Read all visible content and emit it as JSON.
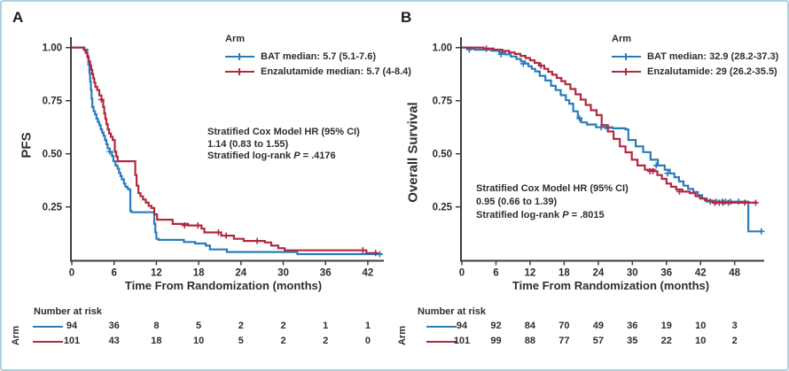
{
  "figure": {
    "border_color": "#abd3e1",
    "axis_color": "#3e3e3e",
    "text_color": "#2d2d2d"
  },
  "chart_data": [
    {
      "type": "km_step",
      "panel_label": "A",
      "y_axis_title": "PFS",
      "x_axis_title": "Time From Randomization (months)",
      "x_ticks": [
        0,
        6,
        12,
        18,
        24,
        30,
        36,
        42
      ],
      "y_ticks": [
        {
          "v": 0.25,
          "label": "0.25"
        },
        {
          "v": 0.5,
          "label": "0.50"
        },
        {
          "v": 0.75,
          "label": "0.75"
        },
        {
          "v": 1.0,
          "label": "1.00"
        }
      ],
      "xlim": [
        0,
        44
      ],
      "ylim": [
        0,
        1.0
      ],
      "grid": false,
      "legend_position": "top-right",
      "legend_title": "Arm",
      "annotation": {
        "line1": "Stratified Cox Model HR (95% CI)",
        "line2": "1.14 (0.83 to 1.55)",
        "line3_prefix": "Stratified log-rank",
        "line3_p": "P",
        "line3_value": "= .4176"
      },
      "risk_header": "Number at risk",
      "arm_label": "Arm",
      "series": [
        {
          "name": "BAT",
          "legend_label": "BAT median: 5.7 (5.1-7.6)",
          "color": "#2b7bb9",
          "points": [
            [
              0,
              1.0
            ],
            [
              1.6,
              1.0
            ],
            [
              1.8,
              0.99
            ],
            [
              2.1,
              0.99
            ],
            [
              2.2,
              0.96
            ],
            [
              2.35,
              0.92
            ],
            [
              2.5,
              0.88
            ],
            [
              2.6,
              0.84
            ],
            [
              2.7,
              0.8
            ],
            [
              2.8,
              0.76
            ],
            [
              2.9,
              0.72
            ],
            [
              3.1,
              0.7
            ],
            [
              3.3,
              0.685
            ],
            [
              3.5,
              0.665
            ],
            [
              3.7,
              0.65
            ],
            [
              3.9,
              0.635
            ],
            [
              4.1,
              0.615
            ],
            [
              4.3,
              0.6
            ],
            [
              4.5,
              0.585
            ],
            [
              4.7,
              0.565
            ],
            [
              4.9,
              0.545
            ],
            [
              5.1,
              0.525
            ],
            [
              5.4,
              0.51
            ],
            [
              5.7,
              0.49
            ],
            [
              5.9,
              0.465
            ],
            [
              6.2,
              0.445
            ],
            [
              6.5,
              0.43
            ],
            [
              6.7,
              0.41
            ],
            [
              6.9,
              0.395
            ],
            [
              7.1,
              0.38
            ],
            [
              7.4,
              0.36
            ],
            [
              7.6,
              0.345
            ],
            [
              7.9,
              0.335
            ],
            [
              8.2,
              0.33
            ],
            [
              8.3,
              0.23
            ],
            [
              8.5,
              0.225
            ],
            [
              11.5,
              0.225
            ],
            [
              11.7,
              0.17
            ],
            [
              11.85,
              0.13
            ],
            [
              12.0,
              0.1
            ],
            [
              12.3,
              0.095
            ],
            [
              15.6,
              0.095
            ],
            [
              15.9,
              0.085
            ],
            [
              17.5,
              0.078
            ],
            [
              19.0,
              0.068
            ],
            [
              19.6,
              0.05
            ],
            [
              22.0,
              0.038
            ],
            [
              32.0,
              0.028
            ],
            [
              44.0,
              0.028
            ]
          ],
          "censors": [
            [
              5.4,
              0.51
            ],
            [
              43.7,
              0.028
            ]
          ],
          "risk": [
            94,
            36,
            8,
            5,
            2,
            2,
            1,
            1
          ]
        },
        {
          "name": "Enzalutamide",
          "legend_label": "Enzalutamide median: 5.7 (4-8.4)",
          "color": "#b02a3f",
          "points": [
            [
              0,
              1.0
            ],
            [
              1.5,
              1.0
            ],
            [
              1.7,
              0.99
            ],
            [
              1.95,
              0.975
            ],
            [
              2.2,
              0.955
            ],
            [
              2.4,
              0.935
            ],
            [
              2.6,
              0.915
            ],
            [
              2.75,
              0.895
            ],
            [
              2.9,
              0.875
            ],
            [
              3.05,
              0.855
            ],
            [
              3.2,
              0.835
            ],
            [
              3.35,
              0.815
            ],
            [
              3.6,
              0.8
            ],
            [
              3.9,
              0.775
            ],
            [
              4.2,
              0.755
            ],
            [
              4.45,
              0.72
            ],
            [
              4.6,
              0.69
            ],
            [
              4.75,
              0.665
            ],
            [
              4.9,
              0.64
            ],
            [
              5.1,
              0.615
            ],
            [
              5.3,
              0.595
            ],
            [
              5.55,
              0.58
            ],
            [
              5.8,
              0.565
            ],
            [
              6.1,
              0.51
            ],
            [
              6.3,
              0.487
            ],
            [
              6.5,
              0.465
            ],
            [
              8.8,
              0.465
            ],
            [
              9.0,
              0.4
            ],
            [
              9.2,
              0.35
            ],
            [
              9.45,
              0.315
            ],
            [
              9.75,
              0.3
            ],
            [
              10.1,
              0.285
            ],
            [
              10.5,
              0.27
            ],
            [
              10.9,
              0.255
            ],
            [
              11.3,
              0.245
            ],
            [
              11.7,
              0.215
            ],
            [
              12.1,
              0.19
            ],
            [
              14.3,
              0.17
            ],
            [
              16.5,
              0.163
            ],
            [
              18.4,
              0.148
            ],
            [
              18.8,
              0.13
            ],
            [
              21.2,
              0.115
            ],
            [
              23.0,
              0.1
            ],
            [
              24.4,
              0.09
            ],
            [
              27.4,
              0.083
            ],
            [
              28.3,
              0.068
            ],
            [
              29.3,
              0.056
            ],
            [
              30.2,
              0.046
            ],
            [
              41.5,
              0.046
            ],
            [
              41.8,
              0.033
            ],
            [
              43.4,
              0.033
            ]
          ],
          "censors": [
            [
              4.2,
              0.755
            ],
            [
              16.0,
              0.163
            ],
            [
              17.9,
              0.163
            ],
            [
              20.8,
              0.13
            ],
            [
              21.9,
              0.115
            ],
            [
              26.3,
              0.09
            ],
            [
              41.3,
              0.046
            ],
            [
              43.1,
              0.033
            ]
          ],
          "risk": [
            101,
            43,
            18,
            10,
            5,
            2,
            2,
            0
          ]
        }
      ]
    },
    {
      "type": "km_step",
      "panel_label": "B",
      "y_axis_title": "Overall Survival",
      "x_axis_title": "Time From Randomization (months)",
      "x_ticks": [
        0,
        6,
        12,
        18,
        24,
        30,
        36,
        42,
        48
      ],
      "y_ticks": [
        {
          "v": 0.25,
          "label": "0.25"
        },
        {
          "v": 0.5,
          "label": "0.50"
        },
        {
          "v": 0.75,
          "label": "0.75"
        },
        {
          "v": 1.0,
          "label": "1.00"
        }
      ],
      "xlim": [
        0,
        53.5
      ],
      "ylim": [
        0,
        1.0
      ],
      "grid": false,
      "legend_position": "top-right",
      "legend_title": "Arm",
      "annotation": {
        "line1": "Stratified Cox Model HR (95% CI)",
        "line2": "0.95 (0.66 to 1.39)",
        "line3_prefix": "Stratified log-rank",
        "line3_p": "P",
        "line3_value": "= .8015"
      },
      "risk_header": "Number at risk",
      "arm_label": "Arm",
      "series": [
        {
          "name": "BAT",
          "legend_label": "BAT median: 32.9 (28.2-37.3)",
          "color": "#2b7bb9",
          "points": [
            [
              0,
              1.0
            ],
            [
              0.9,
              0.995
            ],
            [
              2.2,
              0.99
            ],
            [
              5.2,
              0.985
            ],
            [
              6.6,
              0.975
            ],
            [
              7.6,
              0.968
            ],
            [
              8.6,
              0.958
            ],
            [
              9.6,
              0.946
            ],
            [
              10.4,
              0.935
            ],
            [
              11.1,
              0.924
            ],
            [
              11.7,
              0.912
            ],
            [
              12.3,
              0.9
            ],
            [
              12.9,
              0.888
            ],
            [
              13.7,
              0.867
            ],
            [
              14.7,
              0.845
            ],
            [
              15.7,
              0.82
            ],
            [
              16.5,
              0.8
            ],
            [
              17.4,
              0.776
            ],
            [
              18.3,
              0.752
            ],
            [
              18.9,
              0.736
            ],
            [
              19.6,
              0.7
            ],
            [
              20.4,
              0.667
            ],
            [
              21.0,
              0.648
            ],
            [
              22.0,
              0.638
            ],
            [
              23.6,
              0.625
            ],
            [
              26.5,
              0.62
            ],
            [
              28.8,
              0.615
            ],
            [
              29.3,
              0.565
            ],
            [
              30.6,
              0.535
            ],
            [
              31.9,
              0.508
            ],
            [
              33.2,
              0.472
            ],
            [
              34.5,
              0.445
            ],
            [
              35.7,
              0.425
            ],
            [
              36.6,
              0.408
            ],
            [
              37.4,
              0.39
            ],
            [
              38.2,
              0.37
            ],
            [
              39.0,
              0.35
            ],
            [
              39.8,
              0.335
            ],
            [
              40.7,
              0.32
            ],
            [
              41.5,
              0.305
            ],
            [
              42.3,
              0.29
            ],
            [
              43.1,
              0.275
            ],
            [
              50.3,
              0.275
            ],
            [
              50.4,
              0.135
            ],
            [
              52.9,
              0.135
            ]
          ],
          "censors": [
            [
              1.3,
              0.99
            ],
            [
              6.9,
              0.968
            ],
            [
              10.8,
              0.924
            ],
            [
              20.7,
              0.667
            ],
            [
              24.5,
              0.625
            ],
            [
              25.6,
              0.62
            ],
            [
              34.2,
              0.445
            ],
            [
              36.2,
              0.408
            ],
            [
              43.7,
              0.275
            ],
            [
              44.8,
              0.275
            ],
            [
              45.8,
              0.275
            ],
            [
              46.4,
              0.275
            ],
            [
              47.3,
              0.275
            ],
            [
              48.7,
              0.275
            ],
            [
              52.7,
              0.135
            ]
          ],
          "risk": [
            94,
            92,
            84,
            70,
            49,
            36,
            19,
            10,
            3
          ]
        },
        {
          "name": "Enzalutamide",
          "legend_label": "Enzalutamide: 29 (26.2-35.5)",
          "color": "#b02a3f",
          "points": [
            [
              0,
              1.0
            ],
            [
              3.8,
              0.995
            ],
            [
              5.6,
              0.99
            ],
            [
              7.1,
              0.984
            ],
            [
              8.3,
              0.977
            ],
            [
              9.3,
              0.97
            ],
            [
              10.3,
              0.961
            ],
            [
              11.2,
              0.951
            ],
            [
              12.0,
              0.94
            ],
            [
              12.8,
              0.928
            ],
            [
              13.6,
              0.915
            ],
            [
              14.5,
              0.9
            ],
            [
              15.2,
              0.886
            ],
            [
              15.9,
              0.872
            ],
            [
              16.7,
              0.857
            ],
            [
              17.5,
              0.842
            ],
            [
              18.2,
              0.827
            ],
            [
              19.1,
              0.805
            ],
            [
              20.0,
              0.78
            ],
            [
              20.9,
              0.755
            ],
            [
              21.8,
              0.73
            ],
            [
              22.7,
              0.705
            ],
            [
              23.7,
              0.682
            ],
            [
              24.6,
              0.635
            ],
            [
              25.7,
              0.605
            ],
            [
              26.7,
              0.57
            ],
            [
              27.8,
              0.535
            ],
            [
              28.8,
              0.507
            ],
            [
              29.9,
              0.472
            ],
            [
              30.9,
              0.445
            ],
            [
              32.2,
              0.425
            ],
            [
              33.9,
              0.418
            ],
            [
              34.4,
              0.4
            ],
            [
              35.2,
              0.382
            ],
            [
              36.0,
              0.36
            ],
            [
              36.8,
              0.345
            ],
            [
              37.7,
              0.332
            ],
            [
              38.8,
              0.322
            ],
            [
              40.1,
              0.315
            ],
            [
              41.1,
              0.3
            ],
            [
              41.9,
              0.29
            ],
            [
              42.8,
              0.28
            ],
            [
              44.1,
              0.27
            ],
            [
              51.9,
              0.27
            ]
          ],
          "censors": [
            [
              4.3,
              0.995
            ],
            [
              13.9,
              0.915
            ],
            [
              33.1,
              0.418
            ],
            [
              33.6,
              0.418
            ],
            [
              38.3,
              0.322
            ],
            [
              44.5,
              0.27
            ],
            [
              45.3,
              0.27
            ],
            [
              46.0,
              0.27
            ],
            [
              46.9,
              0.27
            ],
            [
              49.8,
              0.27
            ],
            [
              51.7,
              0.27
            ]
          ],
          "risk": [
            101,
            99,
            88,
            77,
            57,
            35,
            22,
            10,
            2
          ]
        }
      ]
    }
  ]
}
